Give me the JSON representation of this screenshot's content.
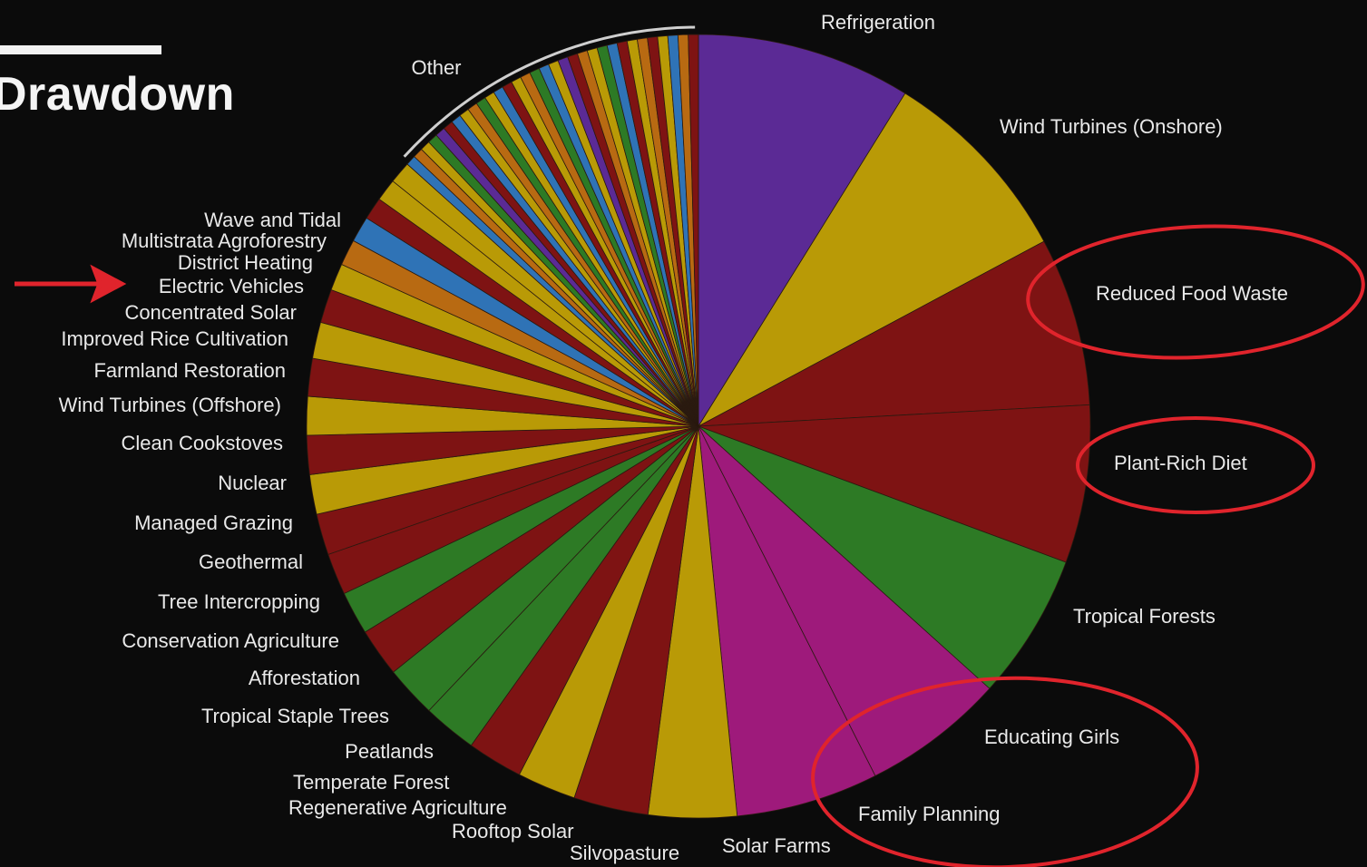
{
  "page": {
    "title": "Drawdown"
  },
  "colors": {
    "purple": "#5b2a95",
    "yellow": "#b99a06",
    "red": "#7e1313",
    "green": "#2d7a25",
    "magenta": "#9e1a7b",
    "blue": "#2f73b6",
    "orange": "#b86a12",
    "annotation": "#e0242c"
  },
  "chart_data": {
    "type": "pie",
    "title": "",
    "series": [
      {
        "name": "Refrigeration",
        "value": 89.7,
        "color": "purple"
      },
      {
        "name": "Wind Turbines (Onshore)",
        "value": 84.6,
        "color": "yellow"
      },
      {
        "name": "Reduced Food Waste",
        "value": 70.5,
        "color": "red"
      },
      {
        "name": "Plant-Rich Diet",
        "value": 66.1,
        "color": "red"
      },
      {
        "name": "Tropical Forests",
        "value": 61.2,
        "color": "green"
      },
      {
        "name": "Educating Girls",
        "value": 59.6,
        "color": "magenta"
      },
      {
        "name": "Family Planning",
        "value": 59.6,
        "color": "magenta"
      },
      {
        "name": "Solar Farms",
        "value": 36.9,
        "color": "yellow"
      },
      {
        "name": "Silvopasture",
        "value": 31.2,
        "color": "red"
      },
      {
        "name": "Rooftop Solar",
        "value": 24.6,
        "color": "yellow"
      },
      {
        "name": "Regenerative Agriculture",
        "value": 23.2,
        "color": "red"
      },
      {
        "name": "Temperate Forest",
        "value": 22.6,
        "color": "green"
      },
      {
        "name": "Peatlands",
        "value": 21.6,
        "color": "green"
      },
      {
        "name": "Tropical Staple Trees",
        "value": 20.2,
        "color": "red"
      },
      {
        "name": "Afforestation",
        "value": 18.1,
        "color": "green"
      },
      {
        "name": "Conservation Agriculture",
        "value": 17.4,
        "color": "red"
      },
      {
        "name": "Tree Intercropping",
        "value": 17.2,
        "color": "red"
      },
      {
        "name": "Geothermal",
        "value": 16.6,
        "color": "yellow"
      },
      {
        "name": "Managed Grazing",
        "value": 16.3,
        "color": "red"
      },
      {
        "name": "Nuclear",
        "value": 16.1,
        "color": "yellow"
      },
      {
        "name": "Clean Cookstoves",
        "value": 15.8,
        "color": "red"
      },
      {
        "name": "Wind Turbines (Offshore)",
        "value": 15.2,
        "color": "yellow"
      },
      {
        "name": "Farmland Restoration",
        "value": 14.1,
        "color": "red"
      },
      {
        "name": "Improved Rice Cultivation",
        "value": 11.3,
        "color": "yellow"
      },
      {
        "name": "Concentrated Solar",
        "value": 10.9,
        "color": "orange"
      },
      {
        "name": "Electric Vehicles",
        "value": 10.8,
        "color": "blue"
      },
      {
        "name": "District Heating",
        "value": 9.4,
        "color": "red"
      },
      {
        "name": "Multistrata Agroforestry",
        "value": 9.3,
        "color": "yellow"
      },
      {
        "name": "Wave and Tidal",
        "value": 9.2,
        "color": "yellow"
      }
    ],
    "other": {
      "name": "Other",
      "colors": [
        "blue",
        "orange",
        "yellow",
        "green",
        "purple",
        "red",
        "blue",
        "yellow",
        "orange",
        "green",
        "yellow",
        "blue",
        "red",
        "yellow",
        "orange",
        "green",
        "blue",
        "yellow",
        "purple",
        "red",
        "orange",
        "yellow",
        "green",
        "blue",
        "red",
        "yellow",
        "orange",
        "red",
        "yellow",
        "blue",
        "orange",
        "red"
      ]
    },
    "highlighted": [
      "Reduced Food Waste",
      "Plant-Rich Diet",
      "Educating Girls",
      "Family Planning"
    ],
    "arrow_target": "Electric Vehicles",
    "legend": "none"
  }
}
